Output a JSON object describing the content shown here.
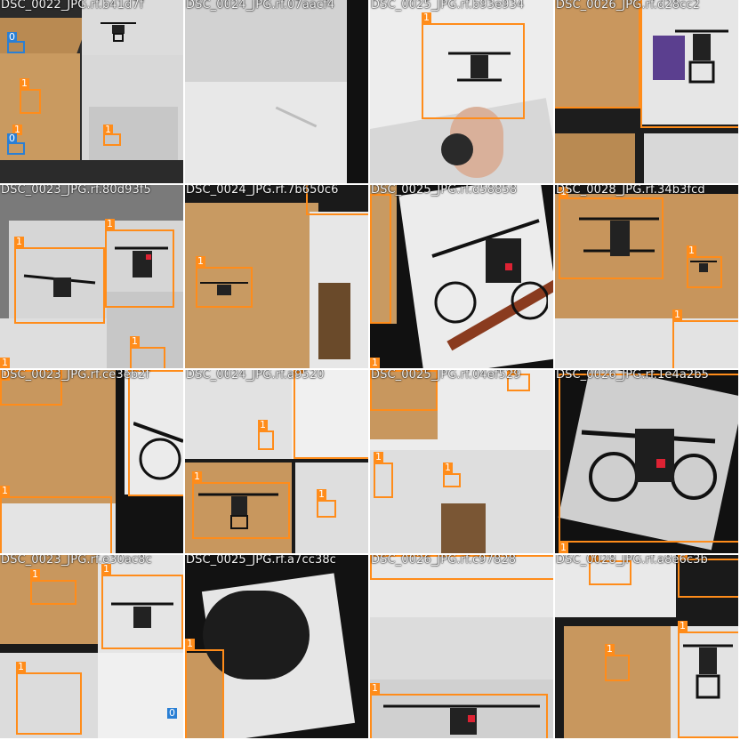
{
  "colors": {
    "class_1": "#ff8c1a",
    "class_0": "#2a7fd4",
    "caption": "#f2f2f2"
  },
  "tiles": [
    {
      "caption": "DSC_0022_JPG.rf.b41d7f",
      "labels": [
        "1",
        "1",
        "1",
        "0",
        "0"
      ]
    },
    {
      "caption": "DSC_0024_JPG.rf.07aacf4",
      "labels": []
    },
    {
      "caption": "DSC_0025_JPG.rf.b93e934",
      "labels": [
        "1"
      ]
    },
    {
      "caption": "DSC_0026_JPG.rf.d28cc2",
      "labels": []
    },
    {
      "caption": "DSC_0023_JPG.rf.80d93f5",
      "labels": [
        "1",
        "1",
        "1",
        "1"
      ]
    },
    {
      "caption": "DSC_0024_JPG.rf.7b650c6",
      "labels": [
        "1"
      ]
    },
    {
      "caption": "DSC_0025_JPG.rf.d58858",
      "labels": [
        "1"
      ]
    },
    {
      "caption": "DSC_0028_JPG.rf.34b3fcd",
      "labels": [
        "1",
        "1",
        "1"
      ]
    },
    {
      "caption": "DSC_0023_JPG.rf.ce3eb2f",
      "labels": [
        "1",
        "1"
      ]
    },
    {
      "caption": "DSC_0024_JPG.rf.a9520",
      "labels": [
        "1",
        "1",
        "1",
        "1"
      ]
    },
    {
      "caption": "DSC_0025_JPG.rf.04ef529",
      "labels": [
        "1",
        "1",
        "1",
        "1"
      ]
    },
    {
      "caption": "DSC_0026_JPG.rf.1e4a2b5",
      "labels": [
        "1"
      ]
    },
    {
      "caption": "DSC_0023_JPG.rf.e30ac8c",
      "labels": [
        "1",
        "1",
        "1",
        "0"
      ]
    },
    {
      "caption": "DSC_0025_JPG.rf.a7cc38c",
      "labels": [
        "1"
      ]
    },
    {
      "caption": "DSC_0026_JPG.rf.c97828",
      "labels": [
        "1"
      ]
    },
    {
      "caption": "DSC_0028_JPG.rf.a8e6c3b",
      "labels": [
        "1",
        "1",
        "1",
        "1"
      ]
    }
  ]
}
